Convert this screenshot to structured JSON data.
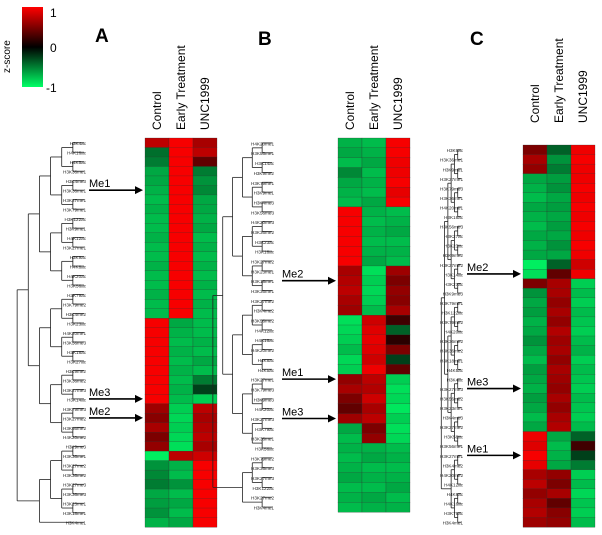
{
  "legend": {
    "title": "z-score",
    "max_label": "1",
    "mid_label": "0",
    "min_label": "-1",
    "colors": {
      "high": "#ff0000",
      "mid": "#000000",
      "low": "#00ff66"
    }
  },
  "chart_data": [
    {
      "type": "heatmap",
      "panel": "A",
      "columns": [
        "Control",
        "Early Treatment",
        "UNC1999"
      ],
      "rows": [
        "H3K4ac",
        "H4K16ac",
        "H4K5ac",
        "H3K36me1",
        "H3K4me3",
        "H3K36me1",
        "H3K27me1",
        "H3K79me1",
        "H3K122ac",
        "H3K9me1",
        "H4K12ac",
        "H3K27me1",
        "H3K9ac",
        "H4K8ac",
        "H4K20ac",
        "H3K56ac",
        "H3K79ac",
        "H3K79me2",
        "H3K4me2",
        "H3K23ac",
        "H4K20me1",
        "H3K56me3",
        "H3K18ac",
        "H3K27ac",
        "H3K9me2",
        "H3K36me2",
        "H3K27me3",
        "H3K14ac",
        "H3K79me3",
        "H3K27me2",
        "H3K56me2",
        "H4K20me2",
        "H3K9me3",
        "H3K36me1",
        "H3K27me2",
        "H3K36me2",
        "H3K27me3",
        "H3K36me3",
        "H3K23me1",
        "H3K18me1",
        "H3K4me1"
      ],
      "values": [
        [
          0.6,
          0.95,
          0.5
        ],
        [
          -0.25,
          0.95,
          0.6
        ],
        [
          -0.3,
          0.95,
          0.2
        ],
        [
          -0.5,
          0.95,
          -0.3
        ],
        [
          -0.5,
          0.95,
          -0.4
        ],
        [
          -0.55,
          0.95,
          -0.35
        ],
        [
          -0.6,
          0.95,
          -0.5
        ],
        [
          -0.55,
          0.95,
          -0.5
        ],
        [
          -0.6,
          0.95,
          -0.55
        ],
        [
          -0.6,
          0.95,
          -0.5
        ],
        [
          -0.55,
          0.95,
          -0.6
        ],
        [
          -0.6,
          0.95,
          -0.55
        ],
        [
          -0.6,
          0.95,
          -0.6
        ],
        [
          -0.55,
          0.95,
          -0.55
        ],
        [
          -0.6,
          0.95,
          -0.6
        ],
        [
          -0.6,
          0.95,
          -0.55
        ],
        [
          -0.55,
          0.95,
          -0.6
        ],
        [
          -0.6,
          0.95,
          -0.55
        ],
        [
          -0.6,
          0.95,
          -0.6
        ],
        [
          0.95,
          -0.5,
          -0.6
        ],
        [
          0.95,
          -0.55,
          -0.6
        ],
        [
          0.95,
          -0.6,
          -0.55
        ],
        [
          0.95,
          -0.55,
          -0.6
        ],
        [
          0.95,
          -0.6,
          -0.5
        ],
        [
          0.95,
          -0.55,
          -0.6
        ],
        [
          0.95,
          -0.6,
          -0.3
        ],
        [
          0.95,
          -0.55,
          -0.1
        ],
        [
          0.95,
          -0.6,
          -0.7
        ],
        [
          0.45,
          -0.7,
          0.6
        ],
        [
          0.35,
          -0.75,
          0.5
        ],
        [
          0.5,
          -0.7,
          0.55
        ],
        [
          0.3,
          -0.75,
          0.6
        ],
        [
          0.4,
          -0.8,
          0.5
        ],
        [
          -0.9,
          0.6,
          0.7
        ],
        [
          -0.4,
          -0.55,
          0.95
        ],
        [
          -0.35,
          -0.6,
          0.95
        ],
        [
          -0.3,
          -0.4,
          0.95
        ],
        [
          -0.5,
          -0.6,
          0.95
        ],
        [
          -0.45,
          -0.5,
          0.95
        ],
        [
          -0.4,
          -0.6,
          0.95
        ],
        [
          -0.55,
          -0.5,
          0.95
        ]
      ],
      "annotations": [
        {
          "label": "Me1",
          "row": 5
        },
        {
          "label": "Me3",
          "row": 27
        },
        {
          "label": "Me2",
          "row": 29
        }
      ]
    },
    {
      "type": "heatmap",
      "panel": "B",
      "columns": [
        "Control",
        "Early Treatment",
        "UNC1999"
      ],
      "rows": [
        "H4K20me1",
        "H3K56me1",
        "H3K14ac",
        "H3K9me2",
        "H3K79me1",
        "H3K9me1",
        "H3K4me3",
        "H3K56me3",
        "H4K20me3",
        "H3K36me2",
        "H3K23ac",
        "H3K18ac",
        "H3K27me2",
        "H3K23me1",
        "H3K18me1",
        "H3K36me1",
        "H3K27me2",
        "H3K4me2",
        "H3K56me2",
        "H4K12ac",
        "H4K16ac",
        "H4K20me2",
        "H4K8ac",
        "H4K5ac",
        "H3K27me1",
        "H3K79me3",
        "H3K9me3",
        "H4K20ac",
        "H3K27me3",
        "H3K79ac",
        "H3K36me1",
        "H3K56ac",
        "H3K79me2",
        "H3K36me3",
        "H3K27me3",
        "H3K122ac",
        "H3K27me2",
        "H3K4me1"
      ],
      "values": [
        [
          -0.55,
          -0.6,
          0.95
        ],
        [
          -0.5,
          -0.55,
          0.95
        ],
        [
          -0.6,
          -0.5,
          0.9
        ],
        [
          -0.35,
          -0.6,
          0.9
        ],
        [
          -0.5,
          -0.55,
          0.95
        ],
        [
          -0.55,
          -0.6,
          0.85
        ],
        [
          -0.6,
          -0.5,
          0.95
        ],
        [
          0.95,
          -0.55,
          -0.6
        ],
        [
          0.95,
          -0.6,
          -0.55
        ],
        [
          0.95,
          -0.55,
          -0.5
        ],
        [
          0.95,
          -0.6,
          -0.6
        ],
        [
          0.95,
          -0.55,
          -0.55
        ],
        [
          0.95,
          -0.5,
          -0.6
        ],
        [
          0.5,
          -0.8,
          0.45
        ],
        [
          0.55,
          -0.7,
          0.3
        ],
        [
          0.6,
          -0.75,
          0.4
        ],
        [
          0.5,
          -0.7,
          0.35
        ],
        [
          0.45,
          -0.6,
          0.5
        ],
        [
          -0.8,
          0.7,
          0.1
        ],
        [
          -0.75,
          0.8,
          -0.2
        ],
        [
          -0.7,
          0.85,
          0.05
        ],
        [
          -0.6,
          0.8,
          0.3
        ],
        [
          -0.75,
          0.7,
          -0.1
        ],
        [
          -0.7,
          0.9,
          0.2
        ],
        [
          0.4,
          0.6,
          -0.7
        ],
        [
          0.5,
          0.55,
          -0.8
        ],
        [
          0.3,
          0.7,
          -0.75
        ],
        [
          0.2,
          0.5,
          -0.85
        ],
        [
          0.45,
          0.6,
          -0.7
        ],
        [
          -0.5,
          0.3,
          -0.8
        ],
        [
          -0.6,
          0.4,
          -0.75
        ],
        [
          -0.55,
          -0.55,
          -0.6
        ],
        [
          -0.6,
          -0.5,
          -0.55
        ],
        [
          -0.55,
          -0.6,
          -0.6
        ],
        [
          -0.5,
          -0.55,
          -0.55
        ],
        [
          -0.6,
          -0.6,
          -0.5
        ],
        [
          -0.55,
          -0.5,
          -0.6
        ],
        [
          -0.6,
          -0.55,
          -0.55
        ]
      ],
      "annotations": [
        {
          "label": "Me2",
          "row": 14
        },
        {
          "label": "Me1",
          "row": 24
        },
        {
          "label": "Me3",
          "row": 28
        }
      ]
    },
    {
      "type": "heatmap",
      "panel": "C",
      "columns": [
        "Control",
        "Early Treatment",
        "UNC1999"
      ],
      "rows": [
        "H3K9ac",
        "H3K36me1",
        "H3K9me1",
        "H3K27me1",
        "H3K79me3",
        "H3K36me1",
        "H4K20me1",
        "H3K18ac",
        "H3K56me3",
        "H3K27ac",
        "H3K23ac",
        "H3K9me2",
        "H3K27me2",
        "H3K14ac",
        "H3K27ac",
        "H3K9me3",
        "H3K79me1",
        "H3K122ac",
        "H3K79me2",
        "H4K20ac",
        "H3K36me2",
        "H3K36me2",
        "H3K18me1",
        "H4K5ac",
        "H3K4ac",
        "H3K27me3",
        "H3K56me2",
        "H3K23me1",
        "H3K4me3",
        "H3K27me2",
        "H3K56ac",
        "H3K56me1",
        "H3K27me1",
        "H3K4me2",
        "H4K20me2",
        "H4K12ac",
        "H4K8ac",
        "H4K16ac",
        "H3K79ac",
        "H3K4me1"
      ],
      "values": [
        [
          0.3,
          -0.2,
          0.9
        ],
        [
          0.5,
          -0.4,
          0.95
        ],
        [
          0.4,
          -0.3,
          0.9
        ],
        [
          -0.5,
          -0.45,
          0.9
        ],
        [
          -0.55,
          -0.4,
          0.95
        ],
        [
          -0.6,
          -0.5,
          0.9
        ],
        [
          -0.5,
          -0.45,
          0.95
        ],
        [
          -0.55,
          -0.5,
          0.9
        ],
        [
          -0.6,
          -0.45,
          0.95
        ],
        [
          -0.5,
          -0.5,
          0.9
        ],
        [
          -0.55,
          -0.4,
          0.95
        ],
        [
          -0.5,
          -0.5,
          0.9
        ],
        [
          -0.9,
          -0.2,
          0.7
        ],
        [
          -0.8,
          0.2,
          0.9
        ],
        [
          0.3,
          0.5,
          -0.7
        ],
        [
          -0.4,
          0.5,
          -0.6
        ],
        [
          -0.5,
          0.4,
          -0.7
        ],
        [
          -0.45,
          0.5,
          -0.6
        ],
        [
          -0.55,
          0.4,
          -0.65
        ],
        [
          -0.5,
          0.55,
          -0.7
        ],
        [
          -0.4,
          0.45,
          -0.6
        ],
        [
          -0.5,
          0.5,
          -0.55
        ],
        [
          -0.6,
          0.4,
          -0.7
        ],
        [
          -0.45,
          0.5,
          -0.6
        ],
        [
          -0.5,
          0.45,
          -0.65
        ],
        [
          -0.55,
          0.4,
          -0.7
        ],
        [
          -0.45,
          0.5,
          -0.6
        ],
        [
          -0.5,
          0.4,
          -0.65
        ],
        [
          -0.6,
          0.5,
          -0.7
        ],
        [
          -0.5,
          0.55,
          -0.6
        ],
        [
          0.9,
          -0.5,
          -0.2
        ],
        [
          0.8,
          -0.6,
          0.1
        ],
        [
          0.95,
          -0.55,
          -0.1
        ],
        [
          0.85,
          -0.5,
          -0.3
        ],
        [
          0.5,
          0.4,
          -0.7
        ],
        [
          0.6,
          0.3,
          -0.6
        ],
        [
          0.4,
          0.5,
          -0.75
        ],
        [
          0.5,
          0.2,
          -0.65
        ],
        [
          0.55,
          0.35,
          -0.7
        ],
        [
          0.45,
          0.4,
          -0.6
        ]
      ],
      "annotations": [
        {
          "label": "Me2",
          "row": 13
        },
        {
          "label": "Me3",
          "row": 25
        },
        {
          "label": "Me1",
          "row": 32
        }
      ]
    }
  ]
}
